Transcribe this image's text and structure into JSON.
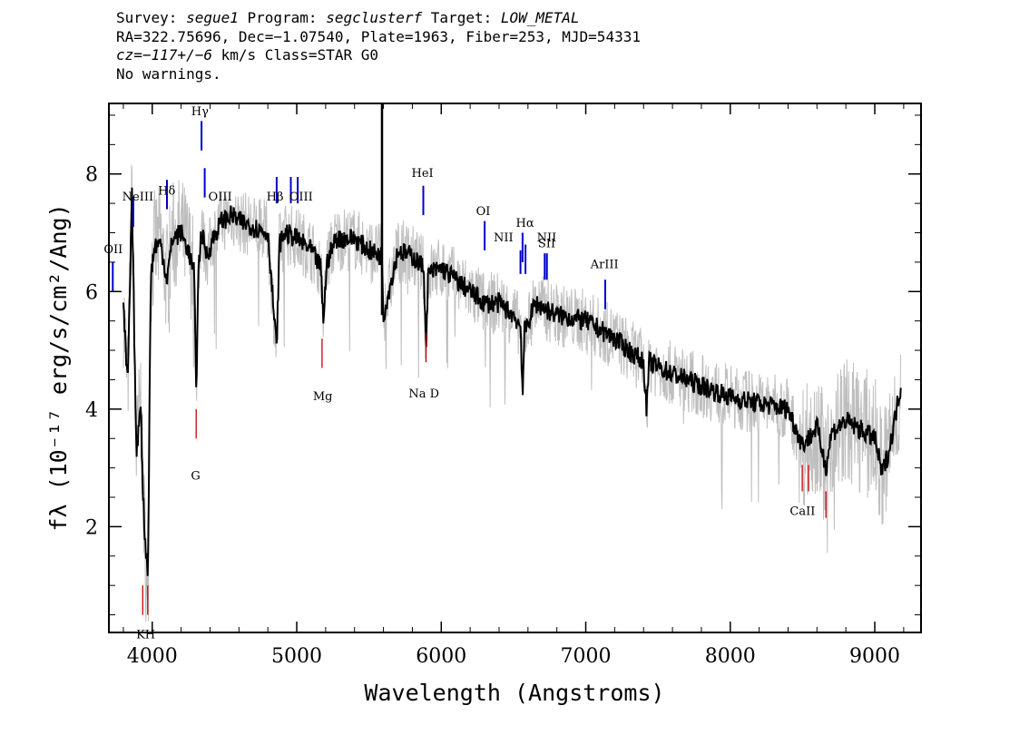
{
  "header": {
    "line1": {
      "survey_label": "Survey: ",
      "survey": "segue1",
      "program_label": " Program: ",
      "program": "segclusterf",
      "target_label": " Target: ",
      "target": "LOW_METAL"
    },
    "line2": "RA=322.75696, Dec=−1.07540, Plate=1963, Fiber=253, MJD=54331",
    "line3": {
      "cz": "cz=−117+/−6",
      "rest": " km/s Class=STAR G0"
    },
    "line4": "No warnings."
  },
  "colors": {
    "spectrum": "#000000",
    "noise": "#bebebe",
    "emission_marker": "#0000cc",
    "absorption_marker": "#cc0000"
  },
  "chart_data": {
    "type": "line",
    "xlabel": "Wavelength (Angstroms)",
    "ylabel": "fλ (10⁻¹⁷ erg/s/cm²/Ang)",
    "xlim": [
      3700,
      9320
    ],
    "ylim": [
      0.2,
      9.2
    ],
    "x_ticks": [
      4000,
      5000,
      6000,
      7000,
      8000,
      9000
    ],
    "y_ticks": [
      2,
      4,
      6,
      8
    ],
    "grid": false,
    "series": [
      {
        "style": "smoothed-flux",
        "x": [
          3800,
          3830,
          3860,
          3890,
          3920,
          3935,
          3950,
          3970,
          3990,
          4020,
          4060,
          4101,
          4140,
          4200,
          4250,
          4290,
          4305,
          4320,
          4340,
          4380,
          4420,
          4480,
          4550,
          4600,
          4700,
          4800,
          4861,
          4880,
          4920,
          5000,
          5100,
          5167,
          5183,
          5210,
          5270,
          5400,
          5500,
          5590,
          5600,
          5700,
          5800,
          5880,
          5893,
          5910,
          6000,
          6100,
          6200,
          6300,
          6400,
          6500,
          6550,
          6563,
          6575,
          6650,
          6800,
          7000,
          7200,
          7400,
          7420,
          7440,
          7600,
          7800,
          8000,
          8200,
          8400,
          8498,
          8542,
          8600,
          8662,
          8700,
          8800,
          9000,
          9050,
          9100,
          9180
        ],
        "y": [
          5.7,
          4.4,
          7.6,
          3.2,
          4.2,
          2.6,
          1.8,
          1.2,
          6.3,
          6.8,
          6.8,
          6.2,
          6.9,
          7.0,
          6.7,
          6.3,
          4.3,
          6.4,
          7.0,
          6.6,
          6.9,
          7.2,
          7.3,
          7.2,
          7.1,
          7.0,
          5.0,
          6.8,
          7.0,
          6.9,
          6.7,
          6.4,
          5.5,
          6.5,
          6.9,
          6.9,
          6.7,
          6.6,
          5.6,
          6.7,
          6.6,
          6.4,
          5.0,
          6.3,
          6.4,
          6.2,
          6.0,
          5.8,
          5.8,
          5.6,
          5.4,
          4.2,
          5.3,
          5.8,
          5.6,
          5.5,
          5.2,
          4.8,
          4.0,
          4.8,
          4.6,
          4.4,
          4.2,
          4.1,
          4.0,
          3.4,
          3.5,
          3.7,
          3.0,
          3.6,
          3.8,
          3.5,
          2.9,
          3.3,
          4.4
        ]
      }
    ],
    "line_markers": [
      {
        "label": "OII",
        "wavelength": 3727,
        "kind": "emission",
        "y_from": 6.0,
        "y_to": 6.5
      },
      {
        "label": "NeIII",
        "wavelength": 3869,
        "kind": "emission",
        "y_from": 7.1,
        "y_to": 7.6
      },
      {
        "label": "Hδ",
        "wavelength": 4102,
        "kind": "emission",
        "y_from": 7.4,
        "y_to": 7.9
      },
      {
        "label": "Hγ",
        "wavelength": 4341,
        "kind": "emission",
        "y_from": 8.4,
        "y_to": 8.9
      },
      {
        "label": "OIII",
        "wavelength": 4363,
        "kind": "emission",
        "y_from": 7.6,
        "y_to": 8.1
      },
      {
        "label": "Hβ",
        "wavelength": 4861,
        "kind": "emission",
        "y_from": 7.5,
        "y_to": 7.95
      },
      {
        "label": "OIII",
        "wavelength": 4959,
        "kind": "emission",
        "y_from": 7.5,
        "y_to": 7.95
      },
      {
        "label": "OIII",
        "wavelength": 5007,
        "kind": "emission",
        "y_from": 7.5,
        "y_to": 7.95
      },
      {
        "label": "HeI",
        "wavelength": 5876,
        "kind": "emission",
        "y_from": 7.3,
        "y_to": 7.8
      },
      {
        "label": "OI",
        "wavelength": 6300,
        "kind": "emission",
        "y_from": 6.7,
        "y_to": 7.2
      },
      {
        "label": "NII",
        "wavelength": 6548,
        "kind": "emission",
        "y_from": 6.3,
        "y_to": 6.7
      },
      {
        "label": "Hα",
        "wavelength": 6563,
        "kind": "emission",
        "y_from": 6.5,
        "y_to": 7.0
      },
      {
        "label": "NII",
        "wavelength": 6583,
        "kind": "emission",
        "y_from": 6.3,
        "y_to": 6.8
      },
      {
        "label": "SII",
        "wavelength": 6716,
        "kind": "emission",
        "y_from": 6.2,
        "y_to": 6.65
      },
      {
        "label": "SII",
        "wavelength": 6731,
        "kind": "emission",
        "y_from": 6.2,
        "y_to": 6.65
      },
      {
        "label": "ArIII",
        "wavelength": 7135,
        "kind": "emission",
        "y_from": 5.7,
        "y_to": 6.2
      },
      {
        "label": "K",
        "wavelength": 3934,
        "kind": "absorption",
        "y_from": 0.5,
        "y_to": 1.0
      },
      {
        "label": "H",
        "wavelength": 3969,
        "kind": "absorption",
        "y_from": 0.5,
        "y_to": 1.0
      },
      {
        "label": "G",
        "wavelength": 4304,
        "kind": "absorption",
        "y_from": 3.5,
        "y_to": 4.0
      },
      {
        "label": "Mg",
        "wavelength": 5175,
        "kind": "absorption",
        "y_from": 4.7,
        "y_to": 5.2
      },
      {
        "label": "Na D",
        "wavelength": 5894,
        "kind": "absorption",
        "y_from": 4.8,
        "y_to": 5.3
      },
      {
        "label": "CaII",
        "wavelength": 8498,
        "kind": "absorption",
        "y_from": 2.6,
        "y_to": 3.05
      },
      {
        "label": "CaII",
        "wavelength": 8542,
        "kind": "absorption",
        "y_from": 2.6,
        "y_to": 3.05
      },
      {
        "label": "CaII",
        "wavelength": 8662,
        "kind": "absorption",
        "y_from": 2.15,
        "y_to": 2.6
      }
    ],
    "marker_labels": [
      {
        "text": "OII",
        "wavelength": 3730,
        "y": 6.65
      },
      {
        "text": "NeIII",
        "wavelength": 3900,
        "y": 7.55
      },
      {
        "text": "Hδ",
        "wavelength": 4100,
        "y": 7.65
      },
      {
        "text": "Hγ",
        "wavelength": 4330,
        "y": 9.0
      },
      {
        "text": "OIII",
        "wavelength": 4470,
        "y": 7.55
      },
      {
        "text": "Hβ",
        "wavelength": 4850,
        "y": 7.55
      },
      {
        "text": "OIII",
        "wavelength": 5030,
        "y": 7.55
      },
      {
        "text": "HeI",
        "wavelength": 5870,
        "y": 7.95
      },
      {
        "text": "OI",
        "wavelength": 6290,
        "y": 7.3
      },
      {
        "text": "NII",
        "wavelength": 6430,
        "y": 6.85
      },
      {
        "text": "Hα",
        "wavelength": 6580,
        "y": 7.1
      },
      {
        "text": "NII",
        "wavelength": 6730,
        "y": 6.85
      },
      {
        "text": "SII",
        "wavelength": 6730,
        "y": 6.75
      },
      {
        "text": "ArIII",
        "wavelength": 7130,
        "y": 6.4
      },
      {
        "text": "KH",
        "wavelength": 3955,
        "y": 0.1
      },
      {
        "text": "G",
        "wavelength": 4300,
        "y": 2.8
      },
      {
        "text": "Mg",
        "wavelength": 5180,
        "y": 4.15
      },
      {
        "text": "Na D",
        "wavelength": 5880,
        "y": 4.2
      },
      {
        "text": "CaII",
        "wavelength": 8500,
        "y": 2.2
      }
    ]
  }
}
